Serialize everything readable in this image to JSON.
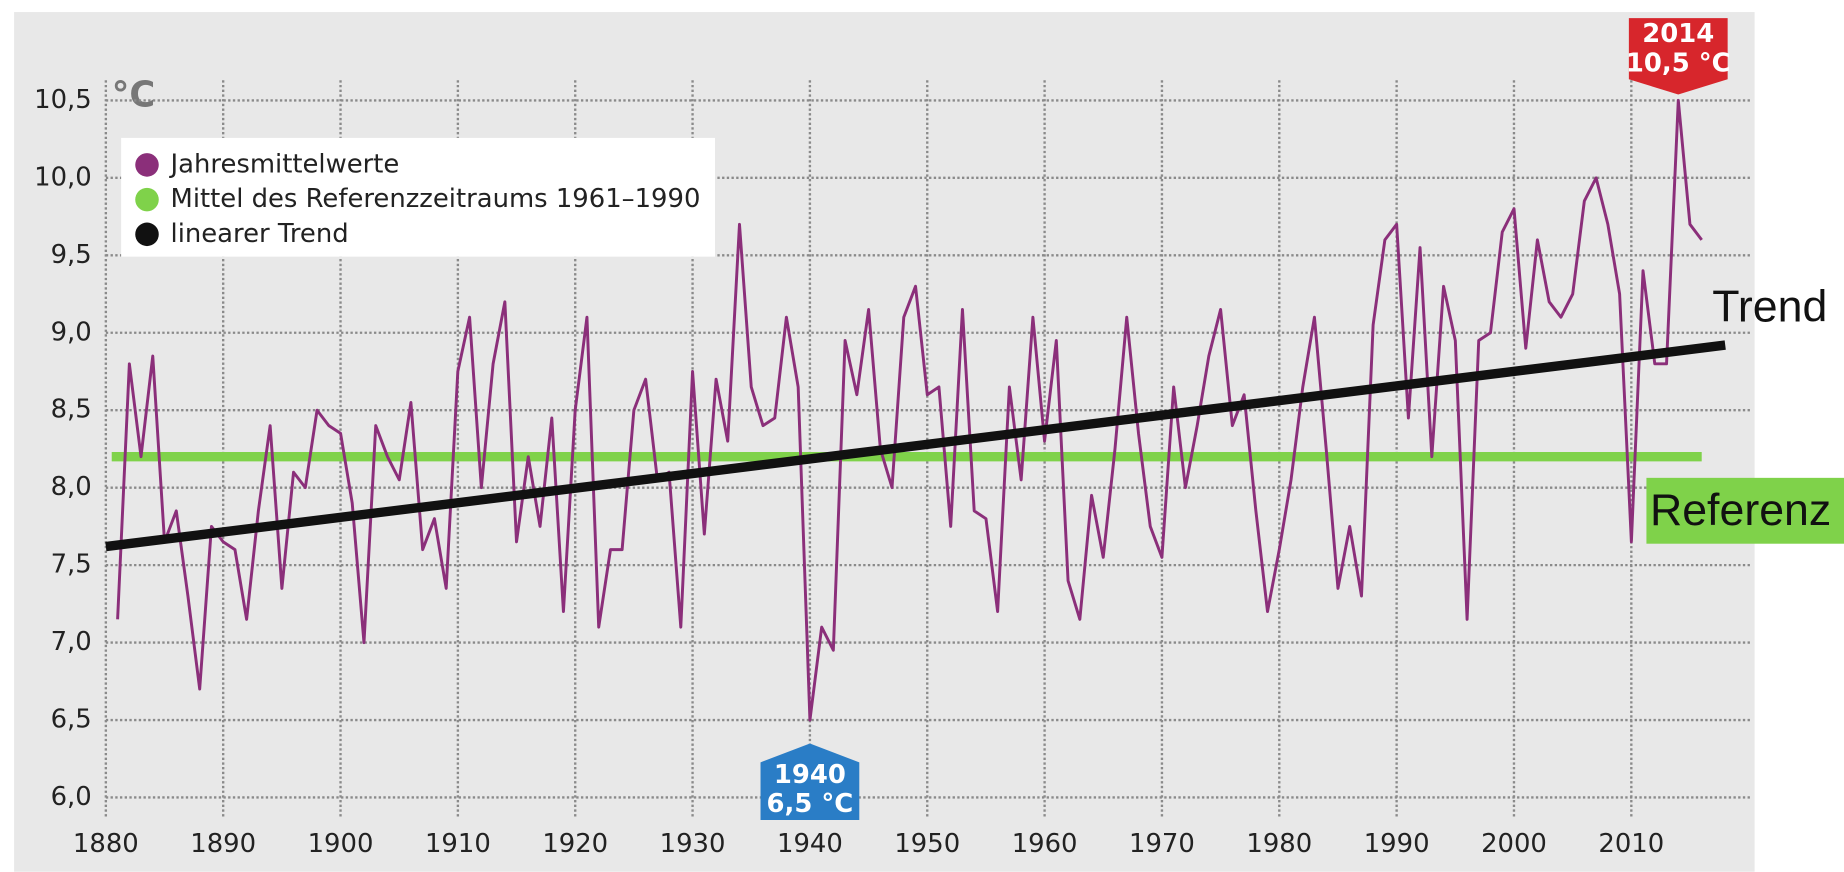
{
  "chart_data": {
    "type": "line",
    "unit_label": "°C",
    "xlim": [
      1880,
      2017
    ],
    "ylim": [
      5.87,
      10.63
    ],
    "xticks": [
      1880,
      1890,
      1900,
      1910,
      1920,
      1930,
      1940,
      1950,
      1960,
      1970,
      1980,
      1990,
      2000,
      2010
    ],
    "yticks": [
      {
        "value": 6.0,
        "label": "6,0"
      },
      {
        "value": 6.5,
        "label": "6,5"
      },
      {
        "value": 7.0,
        "label": "7,0"
      },
      {
        "value": 7.5,
        "label": "7,5"
      },
      {
        "value": 8.0,
        "label": "8,0"
      },
      {
        "value": 8.5,
        "label": "8,5"
      },
      {
        "value": 9.0,
        "label": "9,0"
      },
      {
        "value": 9.5,
        "label": "9,5"
      },
      {
        "value": 10.0,
        "label": "10,0"
      },
      {
        "value": 10.5,
        "label": "10,5"
      }
    ],
    "grid": true,
    "legend": "upper left",
    "series": [
      {
        "name": "Jahresmittelwerte",
        "color": "#8b2f7a",
        "x": [
          1881,
          1882,
          1883,
          1884,
          1885,
          1886,
          1887,
          1888,
          1889,
          1890,
          1891,
          1892,
          1893,
          1894,
          1895,
          1896,
          1897,
          1898,
          1899,
          1900,
          1901,
          1902,
          1903,
          1904,
          1905,
          1906,
          1907,
          1908,
          1909,
          1910,
          1911,
          1912,
          1913,
          1914,
          1915,
          1916,
          1917,
          1918,
          1919,
          1920,
          1921,
          1922,
          1923,
          1924,
          1925,
          1926,
          1927,
          1928,
          1929,
          1930,
          1931,
          1932,
          1933,
          1934,
          1935,
          1936,
          1937,
          1938,
          1939,
          1940,
          1941,
          1942,
          1943,
          1944,
          1945,
          1946,
          1947,
          1948,
          1949,
          1950,
          1951,
          1952,
          1953,
          1954,
          1955,
          1956,
          1957,
          1958,
          1959,
          1960,
          1961,
          1962,
          1963,
          1964,
          1965,
          1966,
          1967,
          1968,
          1969,
          1970,
          1971,
          1972,
          1973,
          1974,
          1975,
          1976,
          1977,
          1978,
          1979,
          1980,
          1981,
          1982,
          1983,
          1984,
          1985,
          1986,
          1987,
          1988,
          1989,
          1990,
          1991,
          1992,
          1993,
          1994,
          1995,
          1996,
          1997,
          1998,
          1999,
          2000,
          2001,
          2002,
          2003,
          2004,
          2005,
          2006,
          2007,
          2008,
          2009,
          2010,
          2011,
          2012,
          2013,
          2014,
          2015,
          2016
        ],
        "values": [
          7.15,
          8.8,
          8.2,
          8.85,
          7.65,
          7.85,
          7.3,
          6.7,
          7.75,
          7.65,
          7.6,
          7.15,
          7.85,
          8.4,
          7.35,
          8.1,
          8.0,
          8.5,
          8.4,
          8.35,
          7.9,
          7.0,
          8.4,
          8.2,
          8.05,
          8.55,
          7.6,
          7.8,
          7.35,
          8.75,
          9.1,
          8.0,
          8.8,
          9.2,
          7.65,
          8.2,
          7.75,
          8.45,
          7.2,
          8.5,
          9.1,
          7.1,
          7.6,
          7.6,
          8.5,
          8.7,
          8.05,
          8.1,
          7.1,
          8.75,
          7.7,
          8.7,
          8.3,
          9.7,
          8.65,
          8.4,
          8.45,
          9.1,
          8.65,
          6.5,
          7.1,
          6.95,
          8.95,
          8.6,
          9.15,
          8.25,
          8.0,
          9.1,
          9.3,
          8.6,
          8.65,
          7.75,
          9.15,
          7.85,
          7.8,
          7.2,
          8.65,
          8.05,
          9.1,
          8.3,
          8.95,
          7.4,
          7.15,
          7.95,
          7.55,
          8.25,
          9.1,
          8.35,
          7.75,
          7.55,
          8.65,
          8.0,
          8.4,
          8.85,
          9.15,
          8.4,
          8.6,
          7.85,
          7.2,
          7.6,
          8.05,
          8.65,
          9.1,
          8.25,
          7.35,
          7.75,
          7.3,
          9.05,
          9.6,
          9.7,
          8.45,
          9.55,
          8.2,
          9.3,
          8.95,
          7.15,
          8.95,
          9.0,
          9.65,
          9.8,
          8.9,
          9.6,
          9.2,
          9.1,
          9.25,
          9.85,
          10.0,
          9.7,
          9.25,
          7.65,
          9.4,
          8.8,
          8.8,
          10.5,
          9.7,
          9.6
        ]
      },
      {
        "name": "Mittel des Referenzzeitraums 1961–1990",
        "color": "#7fd24a",
        "tag": "Referenz",
        "x": [
          1880.5,
          2016
        ],
        "values": [
          8.2,
          8.2
        ]
      },
      {
        "name": "linearer Trend",
        "color": "#111111",
        "tag": "Trend",
        "x": [
          1880,
          2018
        ],
        "values": [
          7.62,
          8.92
        ]
      }
    ],
    "annotations": [
      {
        "lines": [
          "2014",
          "10,5 °C"
        ],
        "x": 2014,
        "value": 10.5,
        "color": "#d7262c"
      },
      {
        "lines": [
          "1940",
          "6,5 °C"
        ],
        "x": 1940,
        "value": 6.5,
        "color": "#2a7dc6"
      }
    ]
  }
}
